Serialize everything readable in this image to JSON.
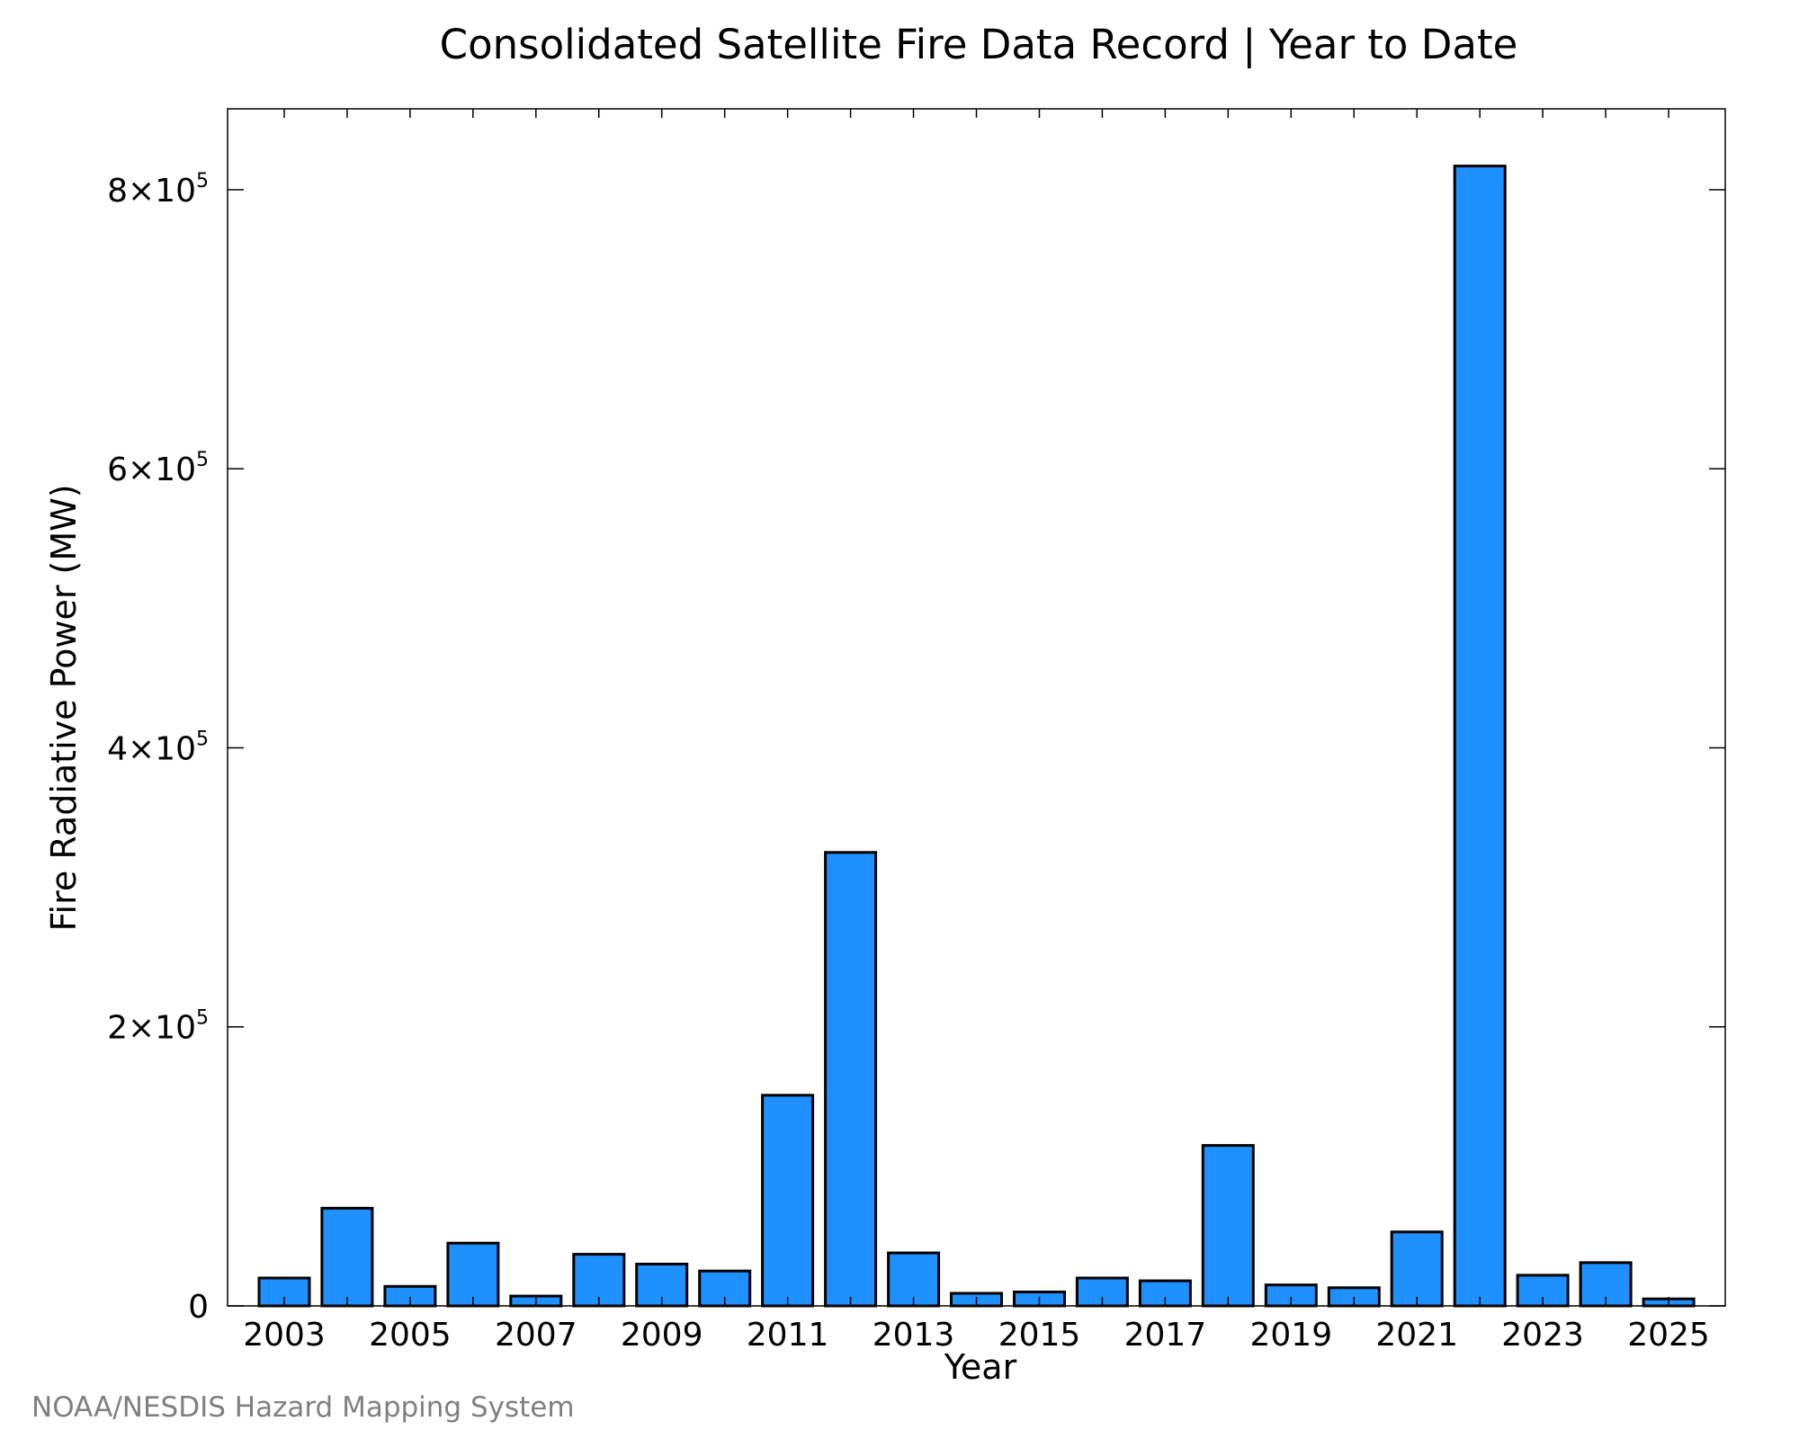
{
  "chart_data": {
    "type": "bar",
    "title": "Consolidated Satellite Fire Data Record | Year to Date",
    "xlabel": "Year",
    "ylabel": "Fire Radiative Power (MW)",
    "credit": "NOAA/NESDIS Hazard Mapping System",
    "bar_color": "#1e90ff",
    "x": [
      2003,
      2004,
      2005,
      2006,
      2007,
      2008,
      2009,
      2010,
      2011,
      2012,
      2013,
      2014,
      2015,
      2016,
      2017,
      2018,
      2019,
      2020,
      2021,
      2022,
      2023,
      2024,
      2025
    ],
    "values": [
      20000,
      70000,
      14000,
      45000,
      7000,
      37000,
      30000,
      25000,
      151000,
      325000,
      38000,
      9000,
      10000,
      20000,
      18000,
      115000,
      15000,
      13000,
      53000,
      817000,
      22000,
      31000,
      5000
    ],
    "xlim": [
      2002.1,
      2025.9
    ],
    "ylim": [
      0,
      858000
    ],
    "x_ticks": [
      2003,
      2005,
      2007,
      2009,
      2011,
      2013,
      2015,
      2017,
      2019,
      2021,
      2023,
      2025
    ],
    "y_ticks": [
      {
        "value": 0,
        "label": "0",
        "exponent": ""
      },
      {
        "value": 200000,
        "label": "2×10",
        "exponent": "5"
      },
      {
        "value": 400000,
        "label": "4×10",
        "exponent": "5"
      },
      {
        "value": 600000,
        "label": "6×10",
        "exponent": "5"
      },
      {
        "value": 800000,
        "label": "8×10",
        "exponent": "5"
      }
    ],
    "grid": false,
    "legend": "none"
  }
}
